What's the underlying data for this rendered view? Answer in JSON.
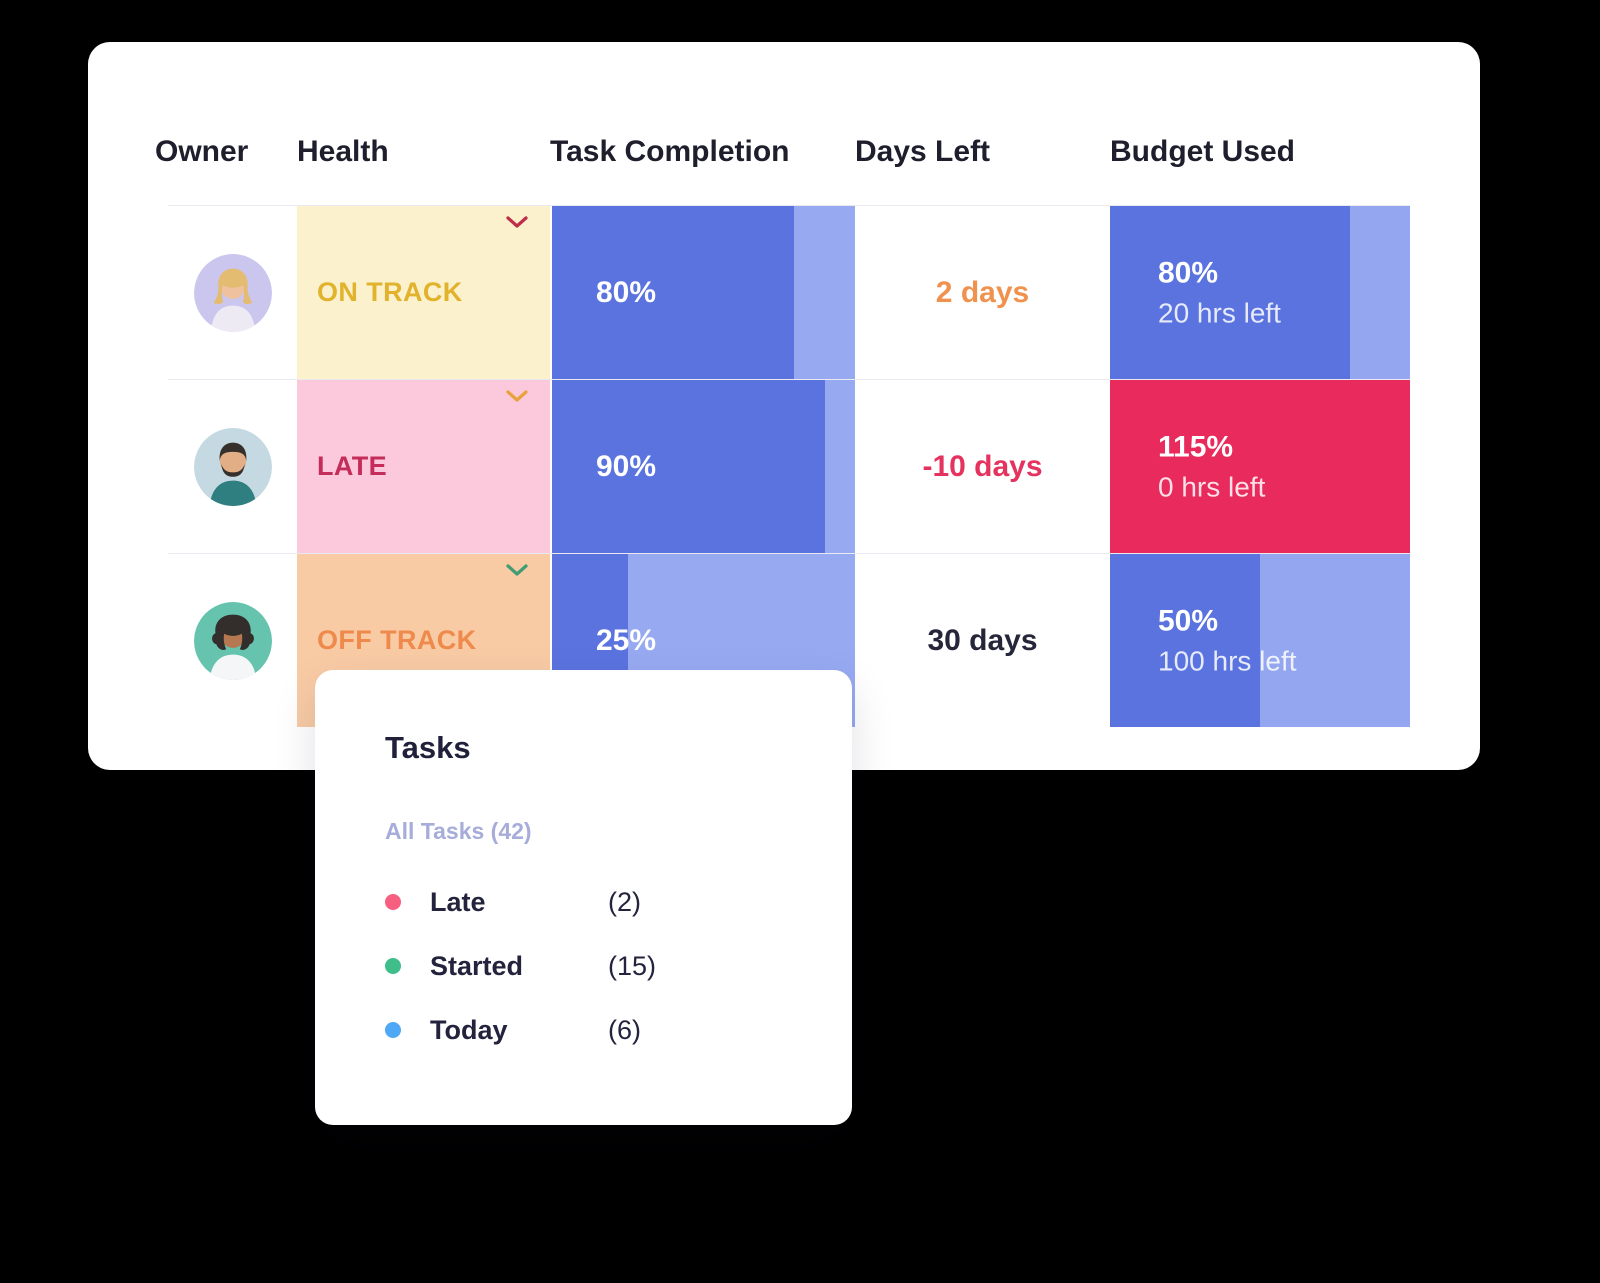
{
  "table": {
    "headers": {
      "owner": "Owner",
      "health": "Health",
      "completion": "Task Completion",
      "days_left": "Days Left",
      "budget": "Budget Used"
    },
    "completion_colors": {
      "fill": "#5a73df",
      "track": "#97a9f1"
    },
    "rows": [
      {
        "health": {
          "label": "ON TRACK",
          "bg": "#fbf2cd",
          "color": "#e2b22d",
          "chevron": "#bf2d49"
        },
        "completion": {
          "percent": 80,
          "label": "80%"
        },
        "days_left": {
          "label": "2 days",
          "color": "#f0914e"
        },
        "budget": {
          "percent": 80,
          "label": "80%",
          "sub_label": "20 hrs left",
          "fill": "#5a73df",
          "track": "#94a6ef"
        }
      },
      {
        "health": {
          "label": "LATE",
          "bg": "#fbc9db",
          "color": "#c42d59",
          "chevron": "#e8a23c"
        },
        "completion": {
          "percent": 90,
          "label": "90%"
        },
        "days_left": {
          "label": "-10 days",
          "color": "#e4335f"
        },
        "budget": {
          "percent": 115,
          "label": "115%",
          "sub_label": "0 hrs left",
          "fill": "#e82a5c",
          "track": "#e82a5c"
        }
      },
      {
        "health": {
          "label": "OFF TRACK",
          "bg": "#f8cba5",
          "color": "#ee8a4b",
          "chevron": "#3f9c73"
        },
        "completion": {
          "percent": 25,
          "label": "25%"
        },
        "days_left": {
          "label": "30 days",
          "color": "#26263a"
        },
        "budget": {
          "percent": 50,
          "label": "50%",
          "sub_label": "100 hrs left",
          "fill": "#5a73df",
          "track": "#94a6ef"
        }
      }
    ]
  },
  "popover": {
    "title": "Tasks",
    "subtitle": "All Tasks (42)",
    "items": [
      {
        "label": "Late",
        "count": "(2)",
        "dot": "#f75f80"
      },
      {
        "label": "Started",
        "count": "(15)",
        "dot": "#3fbe8c"
      },
      {
        "label": "Today",
        "count": "(6)",
        "dot": "#4fa8f6"
      }
    ]
  }
}
